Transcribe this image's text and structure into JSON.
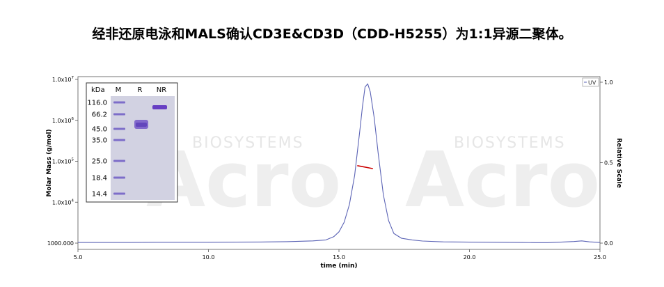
{
  "title": "经非还原电泳和MALS确认CD3E&CD3D（CDD-H5255）为1:1异源二聚体。",
  "watermark": {
    "brand": "Acro",
    "sub": "BIOSYSTEMS"
  },
  "chart_data": {
    "type": "line",
    "xlabel": "time (min)",
    "ylabel_left": "Molar Mass (g/mol)",
    "ylabel_right": "Relative Scale",
    "xlim": [
      5.0,
      25.0
    ],
    "x_ticks": [
      "5.0",
      "10.0",
      "15.0",
      "20.0",
      "25.0"
    ],
    "left_axis_scale": "log",
    "ylim_left": [
      1000,
      10000000
    ],
    "y_left_ticks": [
      {
        "value": 1000,
        "base": "1000.000",
        "exp": ""
      },
      {
        "value": 10000,
        "base": "1.0x10",
        "exp": "4"
      },
      {
        "value": 100000,
        "base": "1.0x10",
        "exp": "5"
      },
      {
        "value": 1000000,
        "base": "1.0x10",
        "exp": "6"
      },
      {
        "value": 10000000,
        "base": "1.0x10",
        "exp": "7"
      }
    ],
    "ylim_right": [
      0.0,
      1.0
    ],
    "y_right_ticks": [
      "0.0",
      "0.5",
      "1.0"
    ],
    "legend": {
      "label": "UV",
      "placement": "top-right"
    },
    "series": [
      {
        "name": "UV",
        "color": "#5b63b5",
        "axis": "right",
        "x": [
          5.0,
          6.0,
          7.0,
          8.0,
          9.0,
          10.0,
          11.0,
          12.0,
          13.0,
          14.0,
          14.5,
          14.8,
          15.0,
          15.2,
          15.4,
          15.6,
          15.8,
          15.9,
          16.0,
          16.1,
          16.2,
          16.35,
          16.5,
          16.7,
          16.9,
          17.1,
          17.4,
          17.8,
          18.2,
          19.0,
          20.0,
          21.0,
          22.0,
          22.5,
          23.0,
          23.5,
          24.0,
          24.3,
          24.6,
          25.0
        ],
        "y": [
          0.004,
          0.004,
          0.004,
          0.005,
          0.005,
          0.005,
          0.006,
          0.007,
          0.009,
          0.014,
          0.02,
          0.04,
          0.07,
          0.13,
          0.24,
          0.42,
          0.7,
          0.85,
          0.97,
          0.99,
          0.94,
          0.78,
          0.56,
          0.3,
          0.14,
          0.06,
          0.03,
          0.02,
          0.013,
          0.008,
          0.006,
          0.005,
          0.004,
          0.003,
          0.003,
          0.006,
          0.01,
          0.014,
          0.008,
          0.004
        ]
      },
      {
        "name": "Molar Mass",
        "color": "#cc0000",
        "axis": "left",
        "x": [
          15.7,
          15.9,
          16.1,
          16.3
        ],
        "y": [
          78000,
          74000,
          70000,
          66000
        ]
      }
    ]
  },
  "gel": {
    "unit_label": "kDa",
    "lanes": [
      "M",
      "R",
      "NR"
    ],
    "markers": [
      "116.0",
      "66.2",
      "45.0",
      "35.0",
      "25.0",
      "18.4",
      "14.4"
    ]
  }
}
